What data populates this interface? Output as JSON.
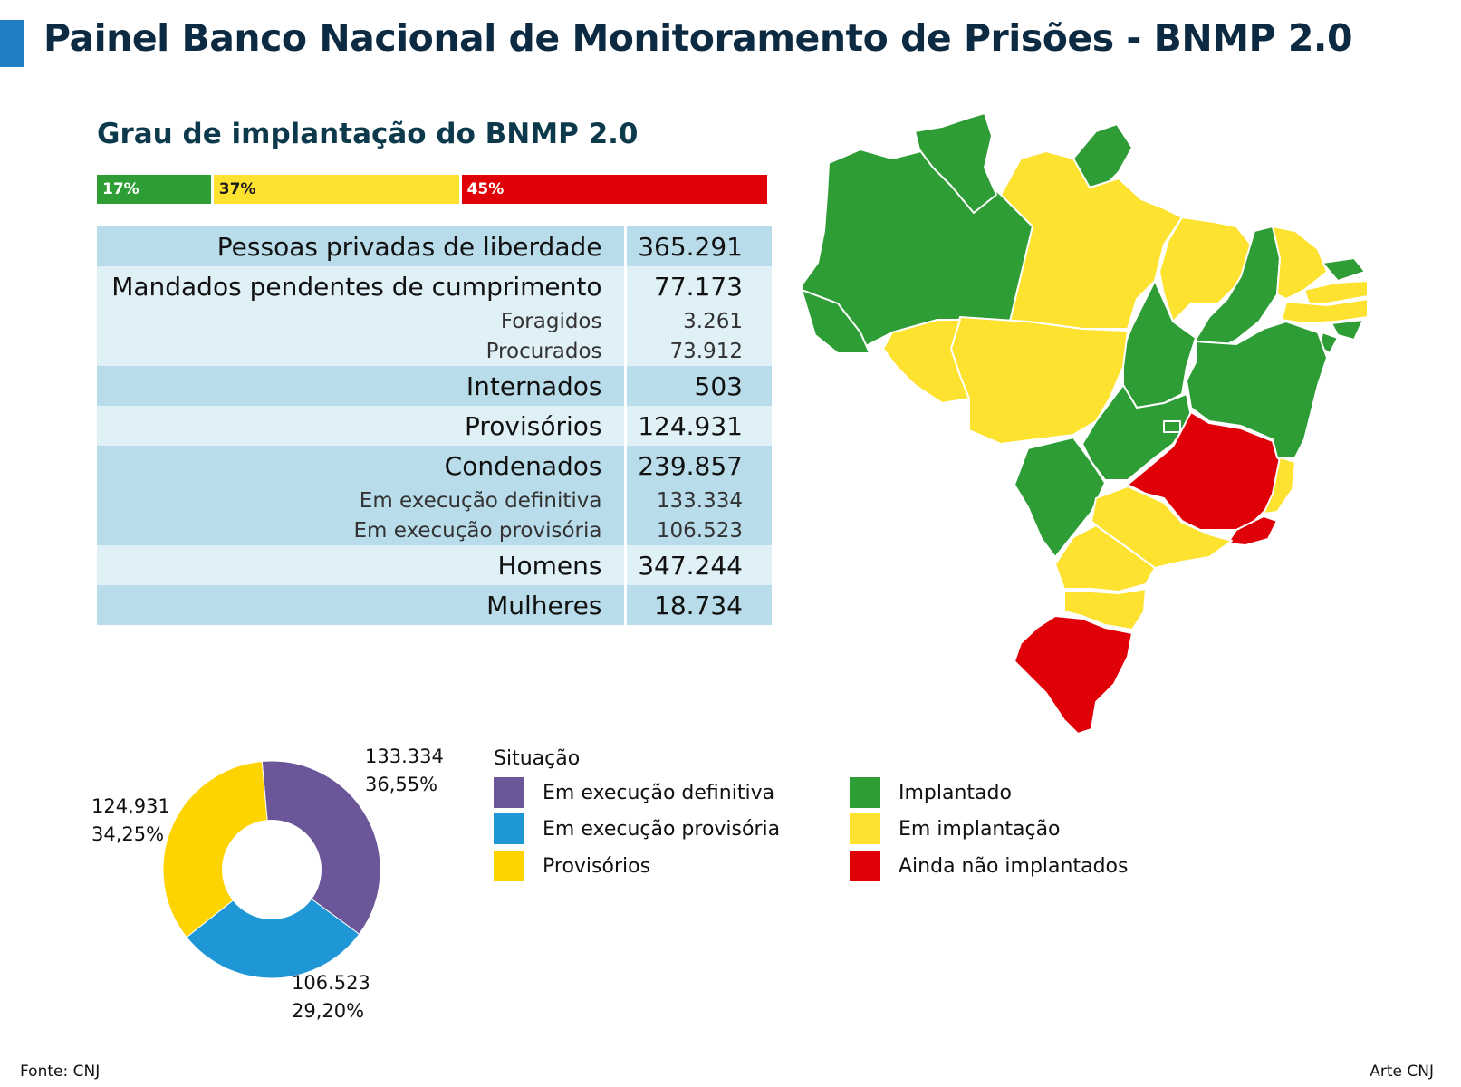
{
  "header": {
    "title": "Painel Banco Nacional de Monitoramento de Prisões - BNMP 2.0",
    "section_title": "Grau de implantação do BNMP 2.0"
  },
  "implementation_bar": [
    {
      "label": "17%",
      "value": 17,
      "color": "#2e9d36"
    },
    {
      "label": "37%",
      "value": 37,
      "color": "#fde22f"
    },
    {
      "label": "45%",
      "value": 45,
      "color": "#e00008"
    }
  ],
  "stats": {
    "pessoas": {
      "label": "Pessoas privadas de liberdade",
      "value": "365.291"
    },
    "mandados": {
      "label": "Mandados pendentes de cumprimento",
      "value": "77.173"
    },
    "foragidos": {
      "label": "Foragidos",
      "value": "3.261"
    },
    "procurados": {
      "label": "Procurados",
      "value": "73.912"
    },
    "internados": {
      "label": "Internados",
      "value": "503"
    },
    "provisorios": {
      "label": "Provisórios",
      "value": "124.931"
    },
    "condenados": {
      "label": "Condenados",
      "value": "239.857"
    },
    "exec_def": {
      "label": "Em execução definitiva",
      "value": "133.334"
    },
    "exec_prov": {
      "label": "Em execução provisória",
      "value": "106.523"
    },
    "homens": {
      "label": "Homens",
      "value": "347.244"
    },
    "mulheres": {
      "label": "Mulheres",
      "value": "18.734"
    }
  },
  "chart_data": {
    "type": "pie",
    "title": "",
    "slices": [
      {
        "name": "Em execução definitiva",
        "value": 133334,
        "value_label": "133.334",
        "percent_label": "36,55%",
        "color": "#6a5699"
      },
      {
        "name": "Em execução provisória",
        "value": 106523,
        "value_label": "106.523",
        "percent_label": "29,20%",
        "color": "#1f97d6"
      },
      {
        "name": "Provisórios",
        "value": 124931,
        "value_label": "124.931",
        "percent_label": "34,25%",
        "color": "#fdd400"
      }
    ]
  },
  "legend": {
    "title": "Situação",
    "status": [
      {
        "label": "Implantado",
        "color": "#2e9d36"
      },
      {
        "label": "Em implantação",
        "color": "#fde22f"
      },
      {
        "label": "Ainda não implantados",
        "color": "#e00008"
      }
    ]
  },
  "map": {
    "colors": {
      "green": "#2e9d36",
      "yellow": "#fde22f",
      "red": "#e00008"
    }
  },
  "footer": {
    "source": "Fonte: CNJ",
    "credit": "Arte CNJ"
  }
}
